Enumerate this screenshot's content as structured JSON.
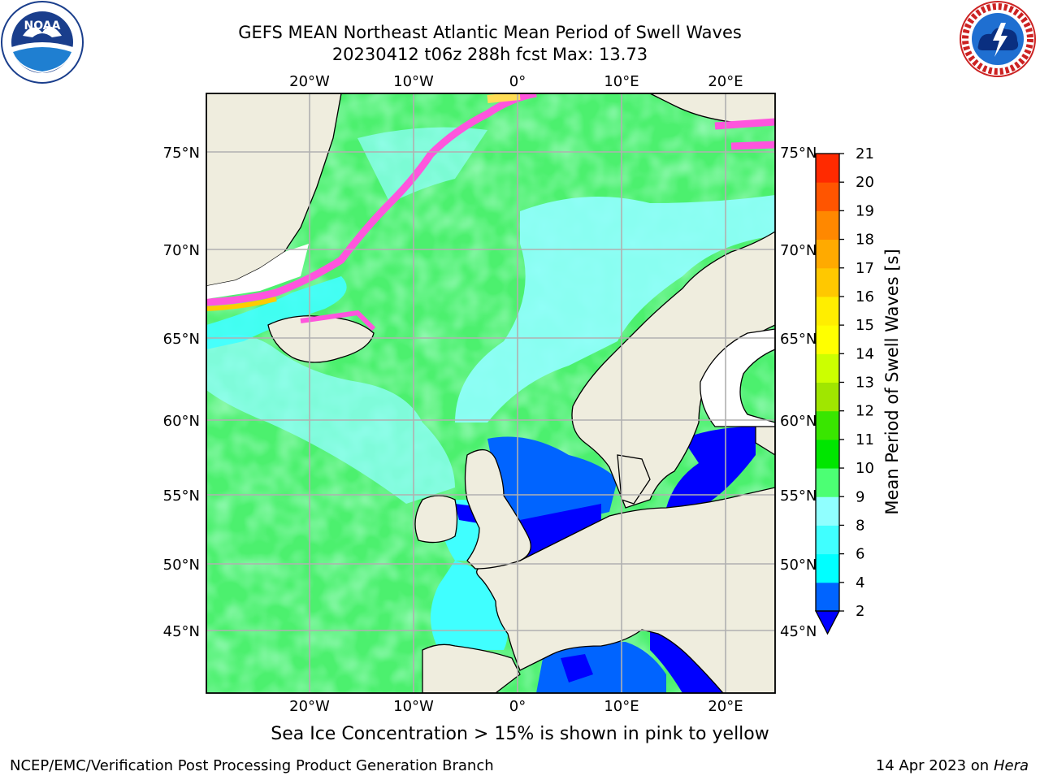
{
  "title": {
    "line1": "GEFS MEAN Northeast Atlantic Mean Period of Swell Waves",
    "line2": "20230412 t06z 288h fcst   Max: 13.73"
  },
  "map": {
    "projection": "cylindrical",
    "lon_range": [
      -30,
      25
    ],
    "lat_range": [
      41,
      78
    ],
    "lon_ticks": [
      "20°W",
      "10°W",
      "0°",
      "10°E",
      "20°E"
    ],
    "lat_ticks": [
      "75°N",
      "70°N",
      "65°N",
      "60°N",
      "55°N",
      "50°N",
      "45°N"
    ],
    "grid": true,
    "land_color": "#efedde"
  },
  "colorbar": {
    "label": "Mean Period of Swell Waves [s]",
    "ticks": [
      "2",
      "4",
      "6",
      "8",
      "9",
      "10",
      "11",
      "12",
      "13",
      "14",
      "15",
      "16",
      "17",
      "18",
      "19",
      "20",
      "21"
    ],
    "colors": [
      "#0064ff",
      "#00ffff",
      "#40ffff",
      "#90ffff",
      "#4cff74",
      "#00e600",
      "#39e600",
      "#a0e600",
      "#ccff00",
      "#ffff00",
      "#ffee00",
      "#ffc800",
      "#ffaa00",
      "#ff8800",
      "#ff5500",
      "#ff2a00",
      "#ff0000"
    ],
    "under_color": "#0000ff"
  },
  "note": "Sea Ice Concentration > 15% is shown in pink to yellow",
  "footer": {
    "left": "NCEP/EMC/Verification Post Processing Product Generation Branch",
    "date": "14 Apr 2023 on ",
    "machine": "Hera"
  },
  "logos": {
    "left": {
      "icon": "noaa-logo",
      "text": "NOAA"
    },
    "right": {
      "icon": "nws-logo",
      "text": "NATIONAL WEATHER SERVICE"
    }
  }
}
